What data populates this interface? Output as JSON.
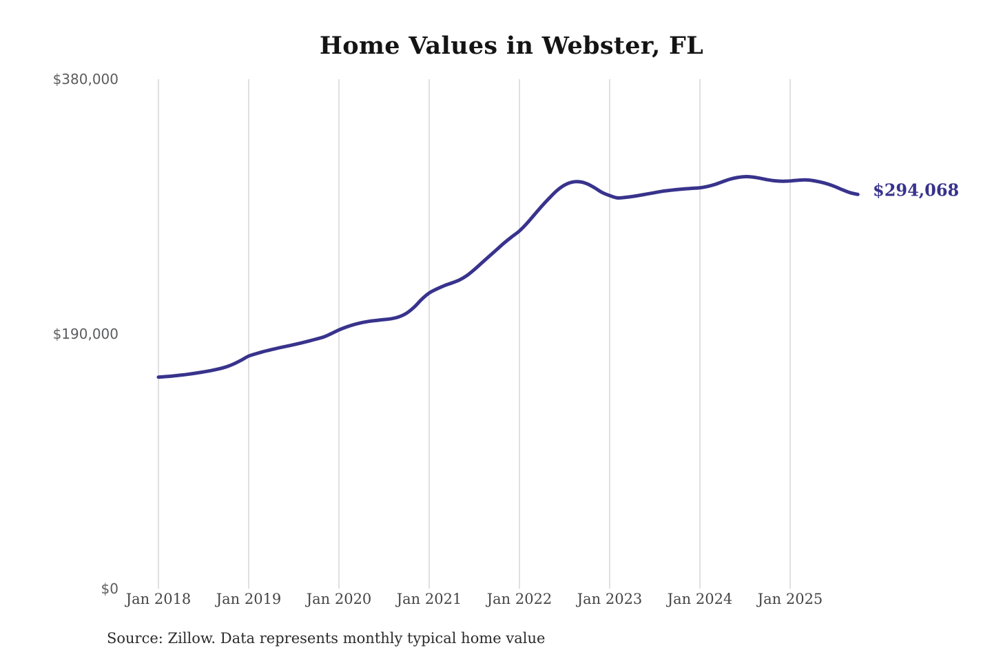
{
  "page": {
    "source_note": "Source: Zillow. Data represents monthly typical home value"
  },
  "chart_data": {
    "type": "line",
    "title": "Home Values in Webster, FL",
    "xlabel": "",
    "ylabel": "",
    "ylim": [
      0,
      380000
    ],
    "grid": "vertical-only",
    "legend": "none",
    "line_color": "#38338c",
    "grid_color": "#cccccc",
    "end_label": "$294,068",
    "last_value": 294068,
    "y_tick_labels": [
      "$380,000",
      "$190,000",
      "$0"
    ],
    "y_tick_values": [
      380000,
      190000,
      0
    ],
    "x_tick_labels": [
      "Jan 2018",
      "Jan 2019",
      "Jan 2020",
      "Jan 2021",
      "Jan 2022",
      "Jan 2023",
      "Jan 2024",
      "Jan 2025"
    ],
    "series": [
      {
        "name": "Monthly typical home value",
        "frequency": "monthly",
        "start_month": "2018-01",
        "end_month": "2025-10",
        "values": [
          157800,
          158200,
          158700,
          159300,
          160000,
          160800,
          161700,
          162700,
          163900,
          165400,
          167600,
          170400,
          173500,
          175300,
          176900,
          178300,
          179600,
          180800,
          182000,
          183300,
          184700,
          186200,
          187800,
          190300,
          193000,
          195200,
          197000,
          198400,
          199400,
          200100,
          200700,
          201400,
          202800,
          205500,
          210000,
          215800,
          220500,
          223500,
          226000,
          228000,
          230200,
          233500,
          238000,
          243000,
          248000,
          253000,
          258000,
          262500,
          266800,
          272500,
          279000,
          285500,
          291500,
          297000,
          301000,
          303200,
          303500,
          302000,
          299000,
          295500,
          293200,
          291500,
          291800,
          292500,
          293400,
          294400,
          295400,
          296400,
          297100,
          297700,
          298200,
          298600,
          299000,
          300000,
          301500,
          303500,
          305400,
          306700,
          307300,
          307000,
          306100,
          305000,
          304200,
          303900,
          304100,
          304600,
          304900,
          304400,
          303300,
          301800,
          299800,
          297400,
          295300,
          294068
        ]
      }
    ]
  }
}
